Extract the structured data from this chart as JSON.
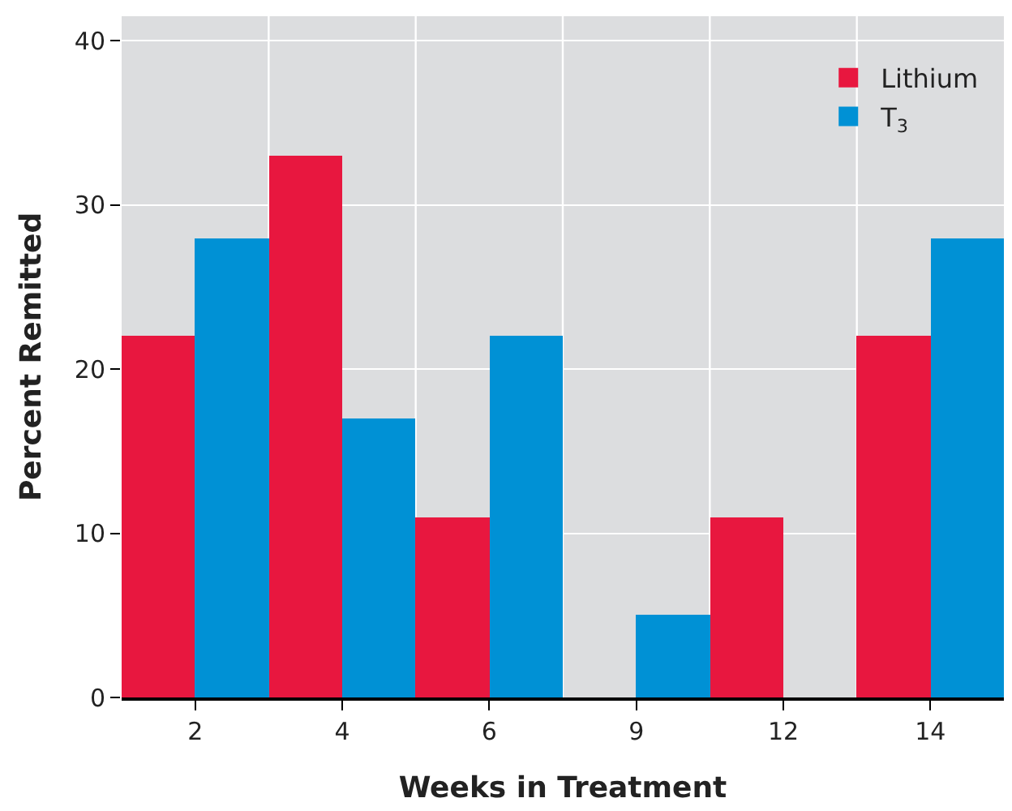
{
  "chart_data": {
    "type": "bar",
    "xlabel": "Weeks in Treatment",
    "ylabel": "Percent Remitted",
    "categories": [
      "2",
      "4",
      "6",
      "9",
      "12",
      "14"
    ],
    "series": [
      {
        "name": "Lithium",
        "color": "#e8173f",
        "values": [
          22,
          33,
          11,
          0,
          11,
          22
        ]
      },
      {
        "name": "T$_{3}$",
        "color": "#0091d5",
        "values": [
          28,
          17,
          22,
          5,
          0,
          28
        ]
      }
    ],
    "ylim": [
      0,
      41.5
    ],
    "yticks": [
      0,
      10,
      20,
      30,
      40
    ],
    "grid": true,
    "legend": "top right"
  }
}
